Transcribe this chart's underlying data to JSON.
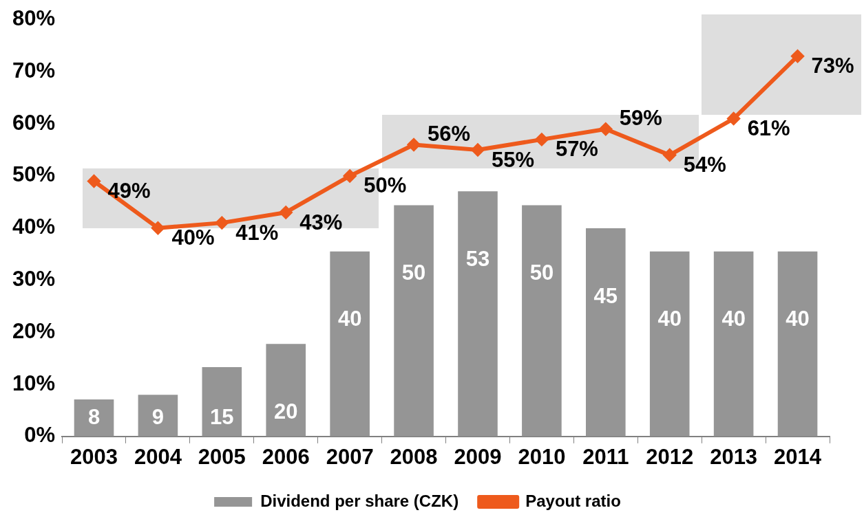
{
  "chart_data": {
    "type": "bar",
    "categories": [
      "2003",
      "2004",
      "2005",
      "2006",
      "2007",
      "2008",
      "2009",
      "2010",
      "2011",
      "2012",
      "2013",
      "2014"
    ],
    "series": [
      {
        "name": "Dividend per share (CZK)",
        "axis": "y2",
        "color": "#959595",
        "values": [
          8,
          9,
          15,
          20,
          40,
          50,
          53,
          50,
          45,
          40,
          40,
          40
        ],
        "value_labels": [
          "8",
          "9",
          "15",
          "20",
          "40",
          "50",
          "53",
          "50",
          "45",
          "40",
          "40",
          "40"
        ]
      },
      {
        "name": "Payout ratio",
        "type": "line",
        "color": "#ee5a1c",
        "marker": "diamond",
        "values": [
          49,
          40,
          41,
          43,
          50,
          56,
          55,
          57,
          59,
          54,
          61,
          73
        ],
        "value_labels": [
          "49%",
          "40%",
          "41%",
          "43%",
          "50%",
          "56%",
          "55%",
          "57%",
          "59%",
          "54%",
          "61%",
          "73%"
        ]
      }
    ],
    "ylim": [
      0,
      80
    ],
    "yticks": [
      {
        "value": 0,
        "label": "0%"
      },
      {
        "value": 10,
        "label": "10%"
      },
      {
        "value": 20,
        "label": "20%"
      },
      {
        "value": 30,
        "label": "30%"
      },
      {
        "value": 40,
        "label": "40%"
      },
      {
        "value": 50,
        "label": "50%"
      },
      {
        "value": 60,
        "label": "60%"
      },
      {
        "value": 70,
        "label": "70%"
      },
      {
        "value": 80,
        "label": "80%"
      }
    ],
    "grid": false,
    "legend": "bottom"
  }
}
